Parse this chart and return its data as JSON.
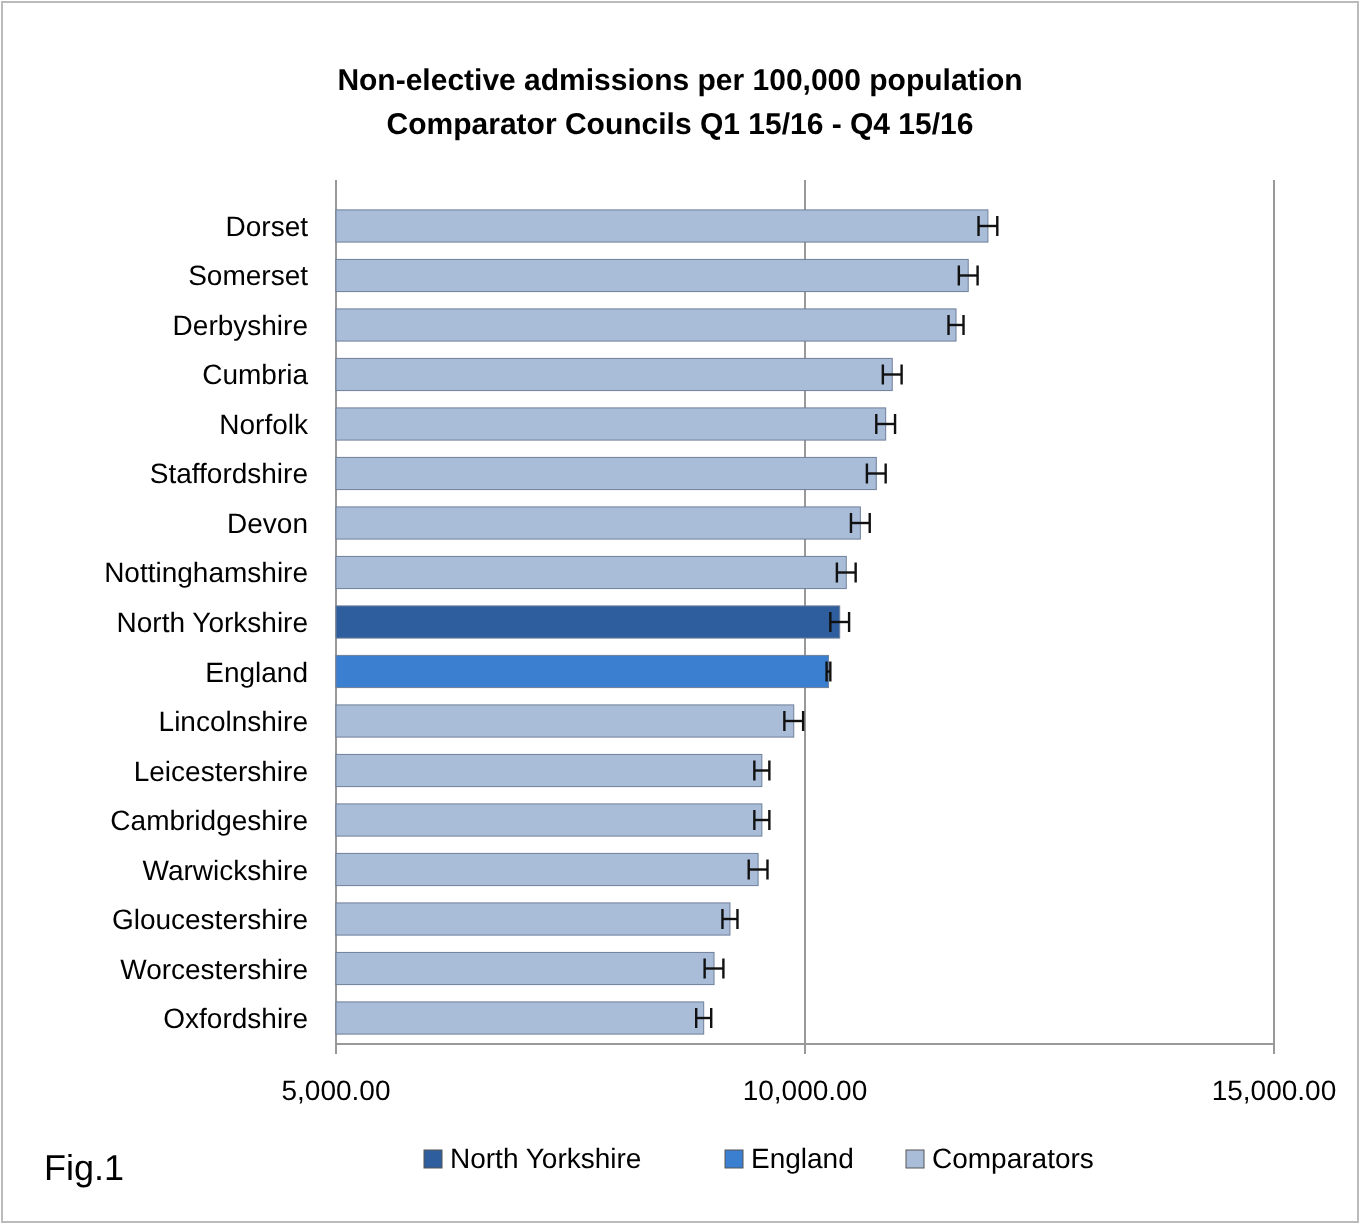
{
  "chart_data": {
    "type": "bar",
    "orientation": "horizontal",
    "title": "Non-elective admissions per 100,000 population\nComparator Councils Q1 15/16 - Q4 15/16",
    "categories": [
      "Dorset",
      "Somerset",
      "Derbyshire",
      "Cumbria",
      "Norfolk",
      "Staffordshire",
      "Devon",
      "Nottinghamshire",
      "North Yorkshire",
      "England",
      "Lincolnshire",
      "Leicestershire",
      "Cambridgeshire",
      "Warwickshire",
      "Gloucestershire",
      "Worcestershire",
      "Oxfordshire"
    ],
    "series": [
      {
        "name": "North Yorkshire",
        "color": "#2f5e9e",
        "values": [
          null,
          null,
          null,
          null,
          null,
          null,
          null,
          null,
          10370,
          null,
          null,
          null,
          null,
          null,
          null,
          null,
          null
        ],
        "errors": [
          null,
          null,
          null,
          null,
          null,
          null,
          null,
          null,
          100,
          null,
          null,
          null,
          null,
          null,
          null,
          null,
          null
        ]
      },
      {
        "name": "England",
        "color": "#3a7fd0",
        "values": [
          null,
          null,
          null,
          null,
          null,
          null,
          null,
          null,
          null,
          10250,
          null,
          null,
          null,
          null,
          null,
          null,
          null
        ],
        "errors": [
          null,
          null,
          null,
          null,
          null,
          null,
          null,
          null,
          null,
          20,
          null,
          null,
          null,
          null,
          null,
          null,
          null
        ]
      },
      {
        "name": "Comparators",
        "color": "#a9bcd8",
        "values": [
          11950,
          11740,
          11610,
          10930,
          10860,
          10760,
          10590,
          10440,
          null,
          null,
          9880,
          9540,
          9540,
          9500,
          9200,
          9030,
          8920
        ],
        "errors": [
          100,
          100,
          80,
          100,
          100,
          100,
          100,
          100,
          null,
          null,
          100,
          80,
          80,
          100,
          80,
          100,
          80
        ]
      }
    ],
    "xlim": [
      5000,
      15000
    ],
    "xticks": [
      {
        "value": 5000,
        "label": "5,000.00"
      },
      {
        "value": 10000,
        "label": "10,000.00"
      },
      {
        "value": 15000,
        "label": "15,000.00"
      }
    ],
    "grid": "x",
    "legend": "bottom",
    "annotations": [
      "Fig.1"
    ]
  }
}
